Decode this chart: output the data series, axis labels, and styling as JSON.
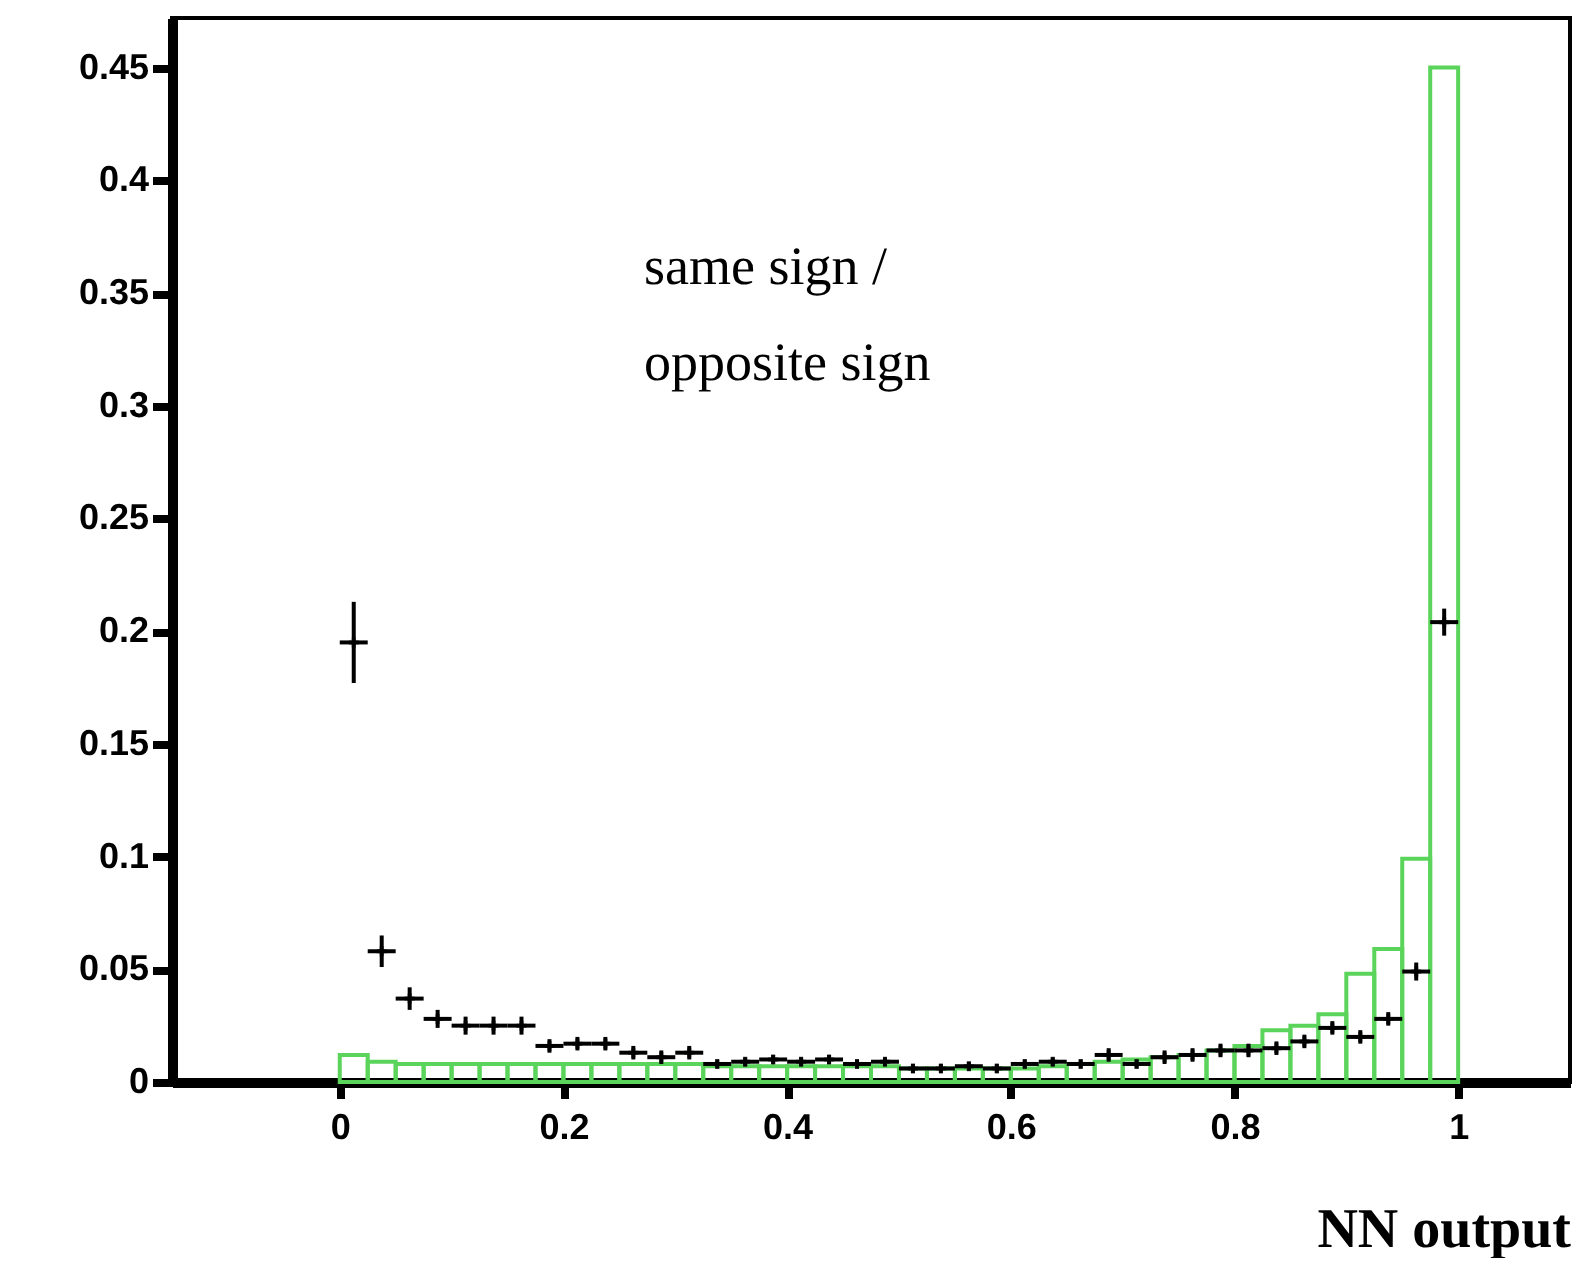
{
  "chart_data": {
    "type": "histogram",
    "xlabel": "NN output",
    "annotations": [
      "same sign /\nopposite sign"
    ],
    "bins": [
      0,
      0.025,
      0.05,
      0.075,
      0.1,
      0.125,
      0.15,
      0.175,
      0.2,
      0.225,
      0.25,
      0.275,
      0.3,
      0.325,
      0.35,
      0.375,
      0.4,
      0.425,
      0.45,
      0.475,
      0.5,
      0.525,
      0.55,
      0.575,
      0.6,
      0.625,
      0.65,
      0.675,
      0.7,
      0.725,
      0.75,
      0.775,
      0.8,
      0.825,
      0.85,
      0.875,
      0.9,
      0.925,
      0.95,
      0.975,
      1
    ],
    "xlim": [
      -0.15,
      1.1
    ],
    "ylim": [
      0,
      0.472
    ],
    "xticks": [
      0,
      0.2,
      0.4,
      0.6,
      0.8,
      1
    ],
    "yticks": [
      0,
      0.05,
      0.1,
      0.15,
      0.2,
      0.25,
      0.3,
      0.35,
      0.4,
      0.45
    ],
    "grid": false,
    "series": [
      {
        "type": "histogram",
        "color": "#5ad45a",
        "values": [
          0.012,
          0.009,
          0.008,
          0.008,
          0.008,
          0.008,
          0.008,
          0.008,
          0.008,
          0.008,
          0.008,
          0.008,
          0.008,
          0.007,
          0.007,
          0.007,
          0.007,
          0.007,
          0.007,
          0.007,
          0.006,
          0.006,
          0.006,
          0.006,
          0.006,
          0.007,
          0.008,
          0.009,
          0.01,
          0.011,
          0.012,
          0.014,
          0.016,
          0.023,
          0.025,
          0.03,
          0.048,
          0.059,
          0.099,
          0.45
        ]
      },
      {
        "type": "scatter",
        "color": "#000000",
        "marker": "cross",
        "x": [
          0.0125,
          0.0375,
          0.0625,
          0.0875,
          0.1125,
          0.1375,
          0.1625,
          0.1875,
          0.2125,
          0.2375,
          0.2625,
          0.2875,
          0.3125,
          0.3375,
          0.3625,
          0.3875,
          0.4125,
          0.4375,
          0.4625,
          0.4875,
          0.5125,
          0.5375,
          0.5625,
          0.5875,
          0.6125,
          0.6375,
          0.6625,
          0.6875,
          0.7125,
          0.7375,
          0.7625,
          0.7875,
          0.8125,
          0.8375,
          0.8625,
          0.8875,
          0.9125,
          0.9375,
          0.9625,
          0.9875
        ],
        "values": [
          0.195,
          0.058,
          0.037,
          0.028,
          0.025,
          0.025,
          0.025,
          0.016,
          0.017,
          0.017,
          0.013,
          0.011,
          0.013,
          0.008,
          0.009,
          0.01,
          0.009,
          0.01,
          0.008,
          0.009,
          0.006,
          0.006,
          0.007,
          0.006,
          0.008,
          0.009,
          0.008,
          0.012,
          0.008,
          0.011,
          0.012,
          0.014,
          0.014,
          0.015,
          0.018,
          0.024,
          0.02,
          0.028,
          0.049,
          0.204
        ],
        "errors": [
          0.018,
          0.007,
          0.005,
          0.004,
          0.004,
          0.004,
          0.004,
          0.003,
          0.003,
          0.003,
          0.003,
          0.003,
          0.003,
          0.002,
          0.002,
          0.002,
          0.002,
          0.002,
          0.002,
          0.002,
          0.002,
          0.002,
          0.002,
          0.002,
          0.002,
          0.002,
          0.002,
          0.003,
          0.002,
          0.003,
          0.003,
          0.003,
          0.003,
          0.003,
          0.003,
          0.003,
          0.003,
          0.003,
          0.004,
          0.006
        ],
        "xerrors": [
          0.0125,
          0.0125,
          0.0125,
          0.0125,
          0.0125,
          0.0125,
          0.0125,
          0.0125,
          0.0125,
          0.0125,
          0.0125,
          0.0125,
          0.0125,
          0.0125,
          0.0125,
          0.0125,
          0.0125,
          0.0125,
          0.0125,
          0.0125,
          0.0125,
          0.0125,
          0.0125,
          0.0125,
          0.0125,
          0.0125,
          0.0125,
          0.0125,
          0.0125,
          0.0125,
          0.0125,
          0.0125,
          0.0125,
          0.0125,
          0.0125,
          0.0125,
          0.0125,
          0.0125,
          0.0125,
          0.0125
        ]
      }
    ]
  }
}
